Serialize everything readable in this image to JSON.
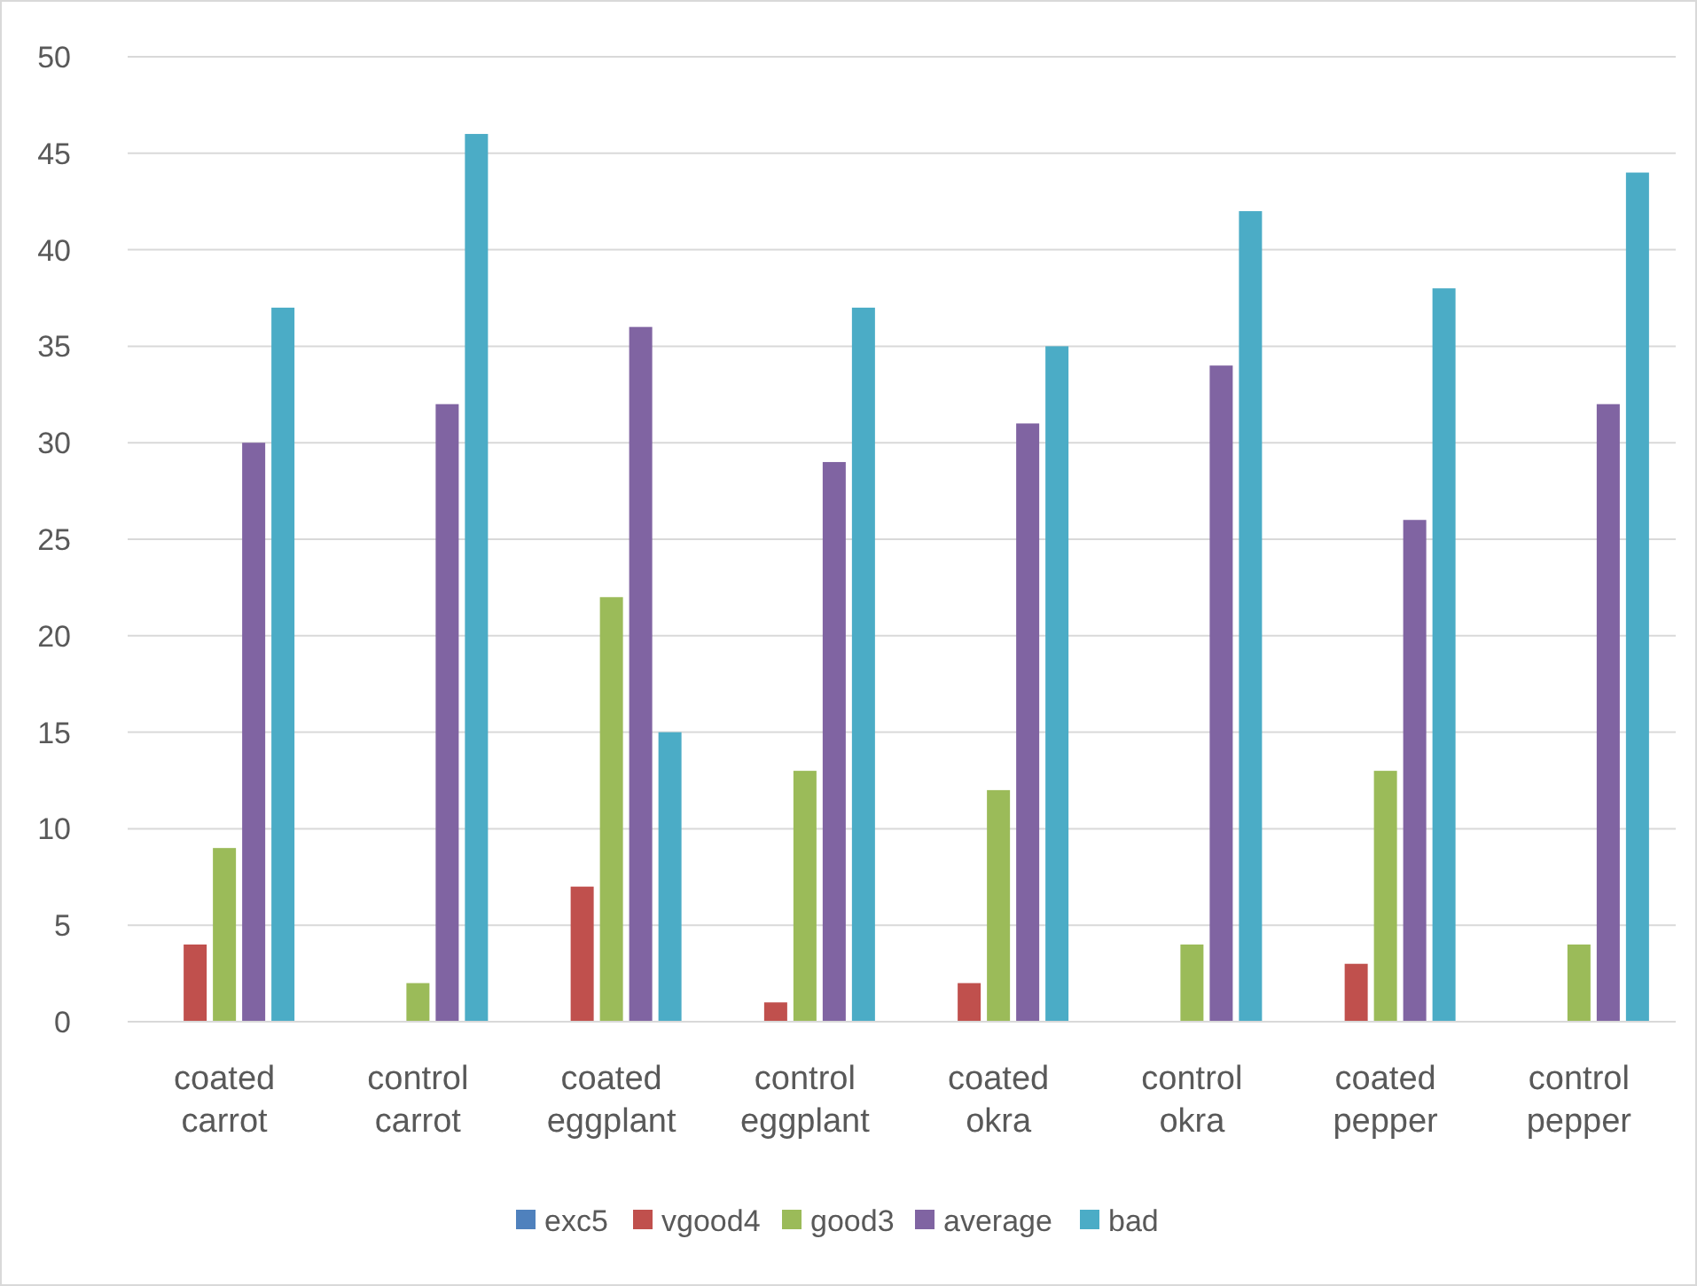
{
  "chart_data": {
    "type": "bar",
    "categories": [
      "coated carrot",
      "control carrot",
      "coated eggplant",
      "control eggplant",
      "coated okra",
      "control okra",
      "coated pepper",
      "control pepper"
    ],
    "series": [
      {
        "name": "exc5",
        "color": "#4f81bd",
        "values": [
          0,
          0,
          0,
          0,
          0,
          0,
          0,
          0
        ]
      },
      {
        "name": "vgood4",
        "color": "#c0504d",
        "values": [
          4,
          0,
          7,
          1,
          2,
          0,
          3,
          0
        ]
      },
      {
        "name": "good3",
        "color": "#9bbb59",
        "values": [
          9,
          2,
          22,
          13,
          12,
          4,
          13,
          4
        ]
      },
      {
        "name": "average",
        "color": "#8064a2",
        "values": [
          30,
          32,
          36,
          29,
          31,
          34,
          26,
          32
        ]
      },
      {
        "name": "bad",
        "color": "#4bacc6",
        "values": [
          37,
          46,
          15,
          37,
          35,
          42,
          38,
          44
        ]
      }
    ],
    "ylim": [
      0,
      50
    ],
    "yticks": [
      0,
      5,
      10,
      15,
      20,
      25,
      30,
      35,
      40,
      45,
      50
    ],
    "grid": "y",
    "legend": "bottom"
  }
}
